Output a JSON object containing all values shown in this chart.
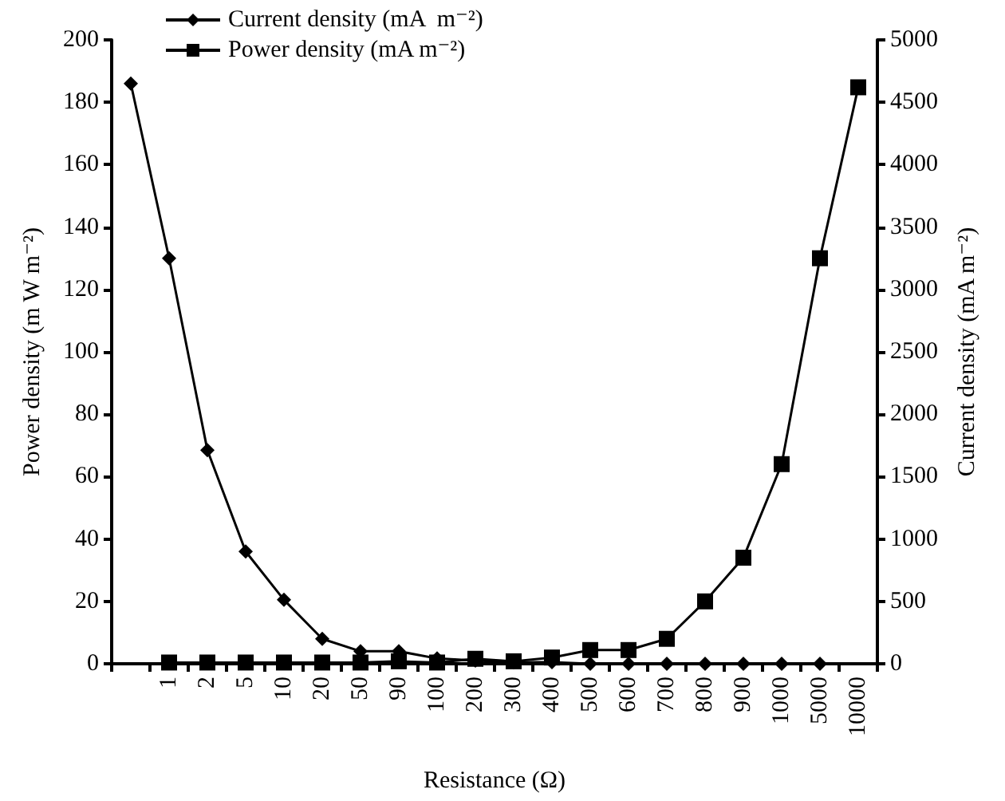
{
  "chart_data": {
    "type": "line",
    "xlabel": "Resistance (Ω)",
    "ylabel": "Power density (m W m⁻²)",
    "y2label": "Current density (mA m⁻²)",
    "categories": [
      null,
      "1",
      "2",
      "5",
      "10",
      "20",
      "50",
      "90",
      "100",
      "200",
      "300",
      "400",
      "500",
      "600",
      "700",
      "800",
      "900",
      "1000",
      "5000",
      "10000"
    ],
    "series": [
      {
        "name": "Current density (mA  m⁻²)",
        "color": "#000000",
        "marker": "diamond",
        "values": [
          186,
          130,
          68.5,
          36,
          20.5,
          8,
          4,
          4,
          1.7,
          1,
          0.5,
          0.5,
          0,
          0,
          0,
          0,
          0,
          0,
          0,
          null
        ]
      },
      {
        "name": "Power density (mA m⁻²)",
        "color": "#000000",
        "marker": "square",
        "axis": "y2",
        "values": [
          null,
          10,
          10,
          10,
          10,
          10,
          10,
          20,
          10,
          40,
          20,
          50,
          110,
          110,
          200,
          500,
          850,
          1600,
          3250,
          4620
        ]
      }
    ],
    "ylim": [
      0,
      200
    ],
    "yticks": [
      0,
      20,
      40,
      60,
      80,
      100,
      120,
      140,
      160,
      180,
      200
    ],
    "y2lim": [
      0,
      5000
    ],
    "y2ticks": [
      0,
      500,
      1000,
      1500,
      2000,
      2500,
      3000,
      3500,
      4000,
      4500,
      5000
    ],
    "grid": false,
    "legend": "top left",
    "line_style": "solid"
  }
}
